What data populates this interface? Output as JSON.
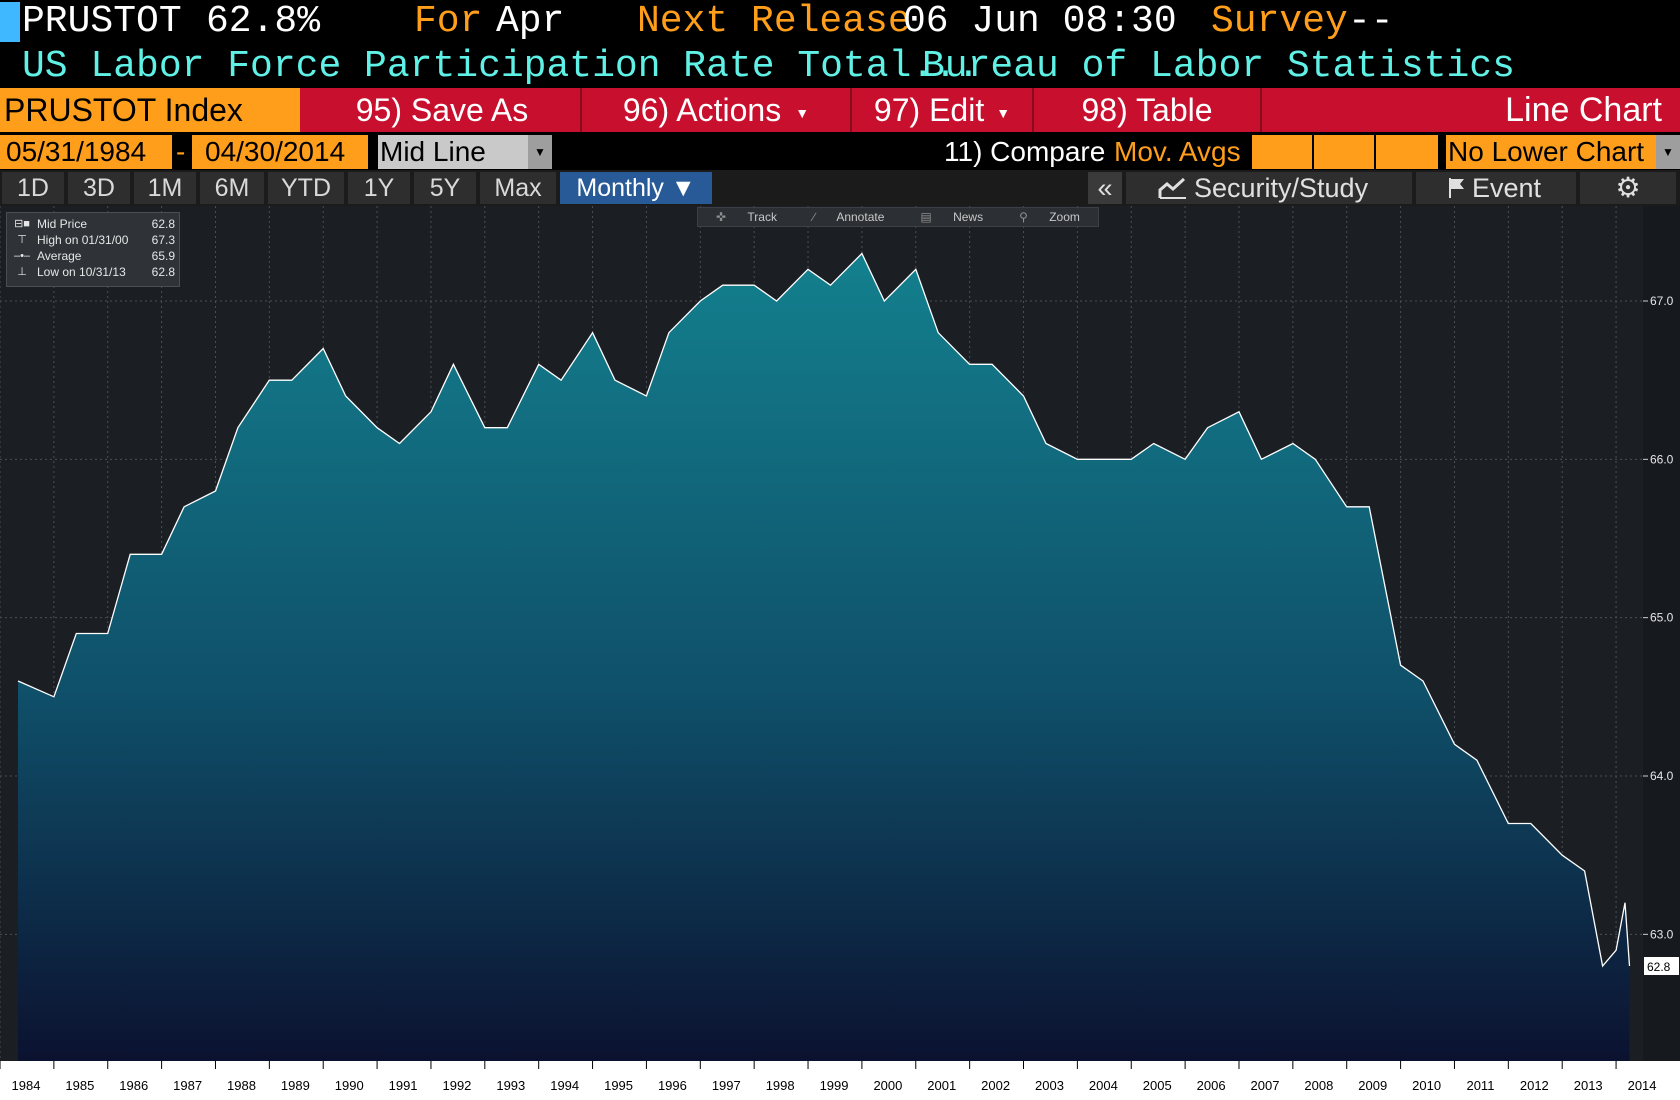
{
  "header": {
    "ticker": "PRUSTOT",
    "last_value": "62.8%",
    "for_label": "For",
    "for_value": "Apr",
    "next_release_label": "Next Release",
    "next_release_value": "06 Jun 08:30",
    "survey_label": "Survey",
    "survey_value": "--",
    "description": "US Labor Force Participation Rate Total...",
    "source": "Bureau of Labor Statistics"
  },
  "menu": {
    "security": "PRUSTOT Index",
    "save_as": "95) Save As",
    "actions": "96) Actions",
    "edit": "97) Edit",
    "table": "98) Table",
    "chart_type": "Line Chart"
  },
  "options": {
    "start_date": "05/31/1984",
    "date_sep": "-",
    "end_date": "04/30/2014",
    "line_type": "Mid Line",
    "compare": "11) Compare",
    "mov_avgs": "Mov. Avgs",
    "lower_chart": "No Lower Chart"
  },
  "timebar": {
    "periods": [
      "1D",
      "3D",
      "1M",
      "6M",
      "YTD",
      "1Y",
      "5Y",
      "Max"
    ],
    "frequency": "Monthly ▼",
    "collapse": "«",
    "security_study": "Security/Study",
    "event": "Event"
  },
  "toolbar": {
    "track": "Track",
    "annotate": "Annotate",
    "news": "News",
    "zoom": "Zoom"
  },
  "legend": {
    "mid_label": "Mid Price",
    "mid_value": "62.8",
    "high_label": "High on 01/31/00",
    "high_value": "67.3",
    "avg_label": "Average",
    "avg_value": "65.9",
    "low_label": "Low on 10/31/13",
    "low_value": "62.8"
  },
  "colors": {
    "orange": "#ff9e1b",
    "cyan": "#5ff0e6",
    "menu_red": "#c8102e",
    "area_top": "#13808e",
    "area_bottom": "#0b1230"
  },
  "chart_data": {
    "type": "area",
    "series": [
      {
        "name": "Mid Price",
        "x": [
          "1984-05",
          "1985-01",
          "1985-06",
          "1986-01",
          "1986-06",
          "1987-01",
          "1987-06",
          "1988-01",
          "1988-06",
          "1989-01",
          "1989-06",
          "1990-01",
          "1990-06",
          "1991-01",
          "1991-06",
          "1992-01",
          "1992-06",
          "1993-01",
          "1993-06",
          "1994-01",
          "1994-06",
          "1995-01",
          "1995-06",
          "1996-01",
          "1996-06",
          "1997-01",
          "1997-06",
          "1998-01",
          "1998-06",
          "1999-01",
          "1999-06",
          "2000-01",
          "2000-06",
          "2001-01",
          "2001-06",
          "2002-01",
          "2002-06",
          "2003-01",
          "2003-06",
          "2004-01",
          "2004-06",
          "2005-01",
          "2005-06",
          "2006-01",
          "2006-06",
          "2007-01",
          "2007-06",
          "2008-01",
          "2008-06",
          "2009-01",
          "2009-06",
          "2010-01",
          "2010-06",
          "2011-01",
          "2011-06",
          "2012-01",
          "2012-06",
          "2013-01",
          "2013-06",
          "2013-10",
          "2014-01",
          "2014-03",
          "2014-04"
        ],
        "y": [
          64.6,
          64.5,
          64.9,
          64.9,
          65.4,
          65.4,
          65.7,
          65.8,
          66.2,
          66.5,
          66.5,
          66.7,
          66.4,
          66.2,
          66.1,
          66.3,
          66.6,
          66.2,
          66.2,
          66.6,
          66.5,
          66.8,
          66.5,
          66.4,
          66.8,
          67.0,
          67.1,
          67.1,
          67.0,
          67.2,
          67.1,
          67.3,
          67.0,
          67.2,
          66.8,
          66.6,
          66.6,
          66.4,
          66.1,
          66.0,
          66.0,
          66.0,
          66.1,
          66.0,
          66.2,
          66.3,
          66.0,
          66.1,
          66.0,
          65.7,
          65.7,
          64.7,
          64.6,
          64.2,
          64.1,
          63.7,
          63.7,
          63.5,
          63.4,
          62.8,
          62.9,
          63.2,
          62.8
        ]
      }
    ],
    "x_ticks": [
      "1984",
      "1985",
      "1986",
      "1987",
      "1988",
      "1989",
      "1990",
      "1991",
      "1992",
      "1993",
      "1994",
      "1995",
      "1996",
      "1997",
      "1998",
      "1999",
      "2000",
      "2001",
      "2002",
      "2003",
      "2004",
      "2005",
      "2006",
      "2007",
      "2008",
      "2009",
      "2010",
      "2011",
      "2012",
      "2013",
      "2014"
    ],
    "y_ticks": [
      "63.0",
      "64.0",
      "65.0",
      "66.0",
      "67.0"
    ],
    "ylim": [
      62.2,
      67.6
    ],
    "last_value_label": "62.8",
    "grid": true,
    "legend_position": "top-left"
  }
}
